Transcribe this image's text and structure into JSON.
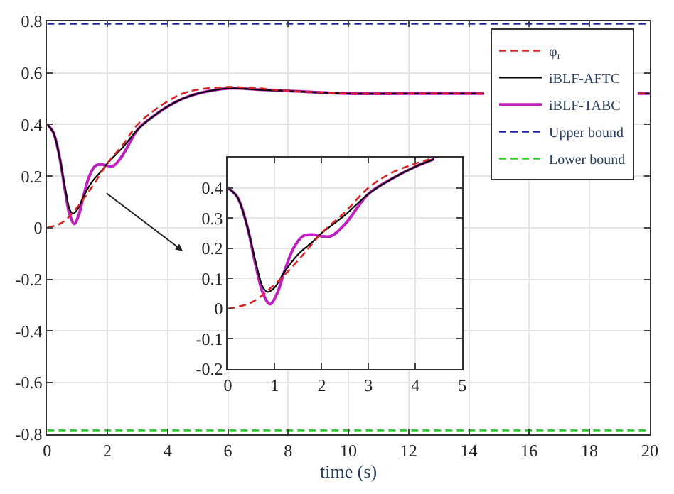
{
  "chart_data": [
    {
      "type": "line",
      "xlabel": "time (s)",
      "xlim": [
        0,
        20
      ],
      "xticks": [
        0,
        2,
        4,
        6,
        8,
        10,
        12,
        14,
        16,
        18,
        20
      ],
      "ylim": [
        -0.8,
        0.8
      ],
      "yticks": [
        -0.8,
        -0.6,
        -0.4,
        -0.2,
        0,
        0.2,
        0.4,
        0.6,
        0.8
      ],
      "grid": true,
      "legend": "top right",
      "marker": "none",
      "series": [
        {
          "name": "φ$_{r}$",
          "color": "#d62728",
          "line_style": "dashed",
          "x": [
            0,
            0.5,
            1,
            1.5,
            2,
            2.5,
            3,
            3.5,
            4,
            4.5,
            5,
            6,
            7,
            8,
            9,
            10,
            12,
            14,
            14.5,
            16,
            18,
            19.6,
            20
          ],
          "values": [
            0,
            0.02,
            0.08,
            0.16,
            0.25,
            0.32,
            0.4,
            0.45,
            0.49,
            0.52,
            0.535,
            0.545,
            0.54,
            0.53,
            0.525,
            0.52,
            0.52,
            0.52,
            0.52,
            null,
            null,
            0.52,
            0.52
          ]
        },
        {
          "name": "iBLF-AFTC",
          "color": "#000000",
          "line_style": "solid",
          "x": [
            0,
            0.2,
            0.4,
            0.6,
            0.75,
            0.85,
            1,
            1.2,
            1.5,
            1.8,
            2,
            2.5,
            3,
            3.5,
            4,
            4.5,
            5,
            6,
            7,
            8,
            10,
            12,
            14,
            14.5,
            16,
            18,
            19.6,
            20
          ],
          "values": [
            0.4,
            0.37,
            0.28,
            0.15,
            0.07,
            0.055,
            0.07,
            0.12,
            0.18,
            0.22,
            0.25,
            0.31,
            0.38,
            0.43,
            0.47,
            0.5,
            0.52,
            0.54,
            0.535,
            0.53,
            0.52,
            0.52,
            0.52,
            0.52,
            null,
            null,
            0.52,
            0.52
          ]
        },
        {
          "name": "iBLF-TABC",
          "color": "#c020c0",
          "line_style": "solid",
          "x": [
            0,
            0.2,
            0.4,
            0.6,
            0.75,
            0.9,
            1.05,
            1.2,
            1.4,
            1.6,
            1.8,
            2,
            2.2,
            2.5,
            3,
            3.5,
            4,
            4.5,
            5,
            6,
            7,
            8,
            10,
            12,
            14,
            14.5,
            16,
            18,
            19.6,
            20
          ],
          "values": [
            0.4,
            0.37,
            0.28,
            0.14,
            0.05,
            0.015,
            0.05,
            0.12,
            0.2,
            0.24,
            0.245,
            0.24,
            0.24,
            0.28,
            0.38,
            0.43,
            0.47,
            0.5,
            0.52,
            0.54,
            0.535,
            0.53,
            0.52,
            0.52,
            0.52,
            0.52,
            null,
            null,
            0.52,
            0.52
          ]
        },
        {
          "name": "Upper bound",
          "color": "#1f1fb4",
          "line_style": "dashed",
          "x": [
            0,
            20
          ],
          "values": [
            0.79,
            0.79
          ]
        },
        {
          "name": "Lower bound",
          "color": "#33cc33",
          "line_style": "dashed",
          "x": [
            0,
            20
          ],
          "values": [
            -0.785,
            -0.785
          ]
        }
      ]
    },
    {
      "type": "line",
      "xlim": [
        0,
        5
      ],
      "xticks": [
        0,
        1,
        2,
        3,
        4,
        5
      ],
      "ylim": [
        -0.2,
        0.5
      ],
      "yticks": [
        -0.2,
        -0.1,
        0,
        0.1,
        0.2,
        0.3,
        0.4
      ],
      "grid": true,
      "marker": "none",
      "series": [
        {
          "color": "#d62728",
          "line_style": "dashed",
          "x": [
            0,
            0.5,
            1,
            1.5,
            2,
            2.5,
            3,
            3.5,
            4,
            4.3
          ],
          "values": [
            0,
            0.02,
            0.08,
            0.16,
            0.25,
            0.32,
            0.4,
            0.45,
            0.48,
            0.495
          ]
        },
        {
          "color": "#000000",
          "line_style": "solid",
          "x": [
            0,
            0.2,
            0.4,
            0.6,
            0.75,
            0.85,
            1,
            1.2,
            1.5,
            1.8,
            2,
            2.5,
            3,
            3.5,
            4,
            4.4
          ],
          "values": [
            0.4,
            0.37,
            0.28,
            0.15,
            0.07,
            0.055,
            0.07,
            0.12,
            0.18,
            0.22,
            0.25,
            0.31,
            0.38,
            0.43,
            0.47,
            0.495
          ]
        },
        {
          "color": "#c020c0",
          "line_style": "solid",
          "x": [
            0,
            0.2,
            0.4,
            0.6,
            0.75,
            0.9,
            1.05,
            1.2,
            1.4,
            1.6,
            1.8,
            2,
            2.2,
            2.5,
            3,
            3.5,
            4,
            4.4
          ],
          "values": [
            0.4,
            0.37,
            0.28,
            0.14,
            0.05,
            0.015,
            0.05,
            0.12,
            0.2,
            0.24,
            0.245,
            0.24,
            0.24,
            0.28,
            0.38,
            0.43,
            0.47,
            0.495
          ]
        }
      ]
    }
  ]
}
